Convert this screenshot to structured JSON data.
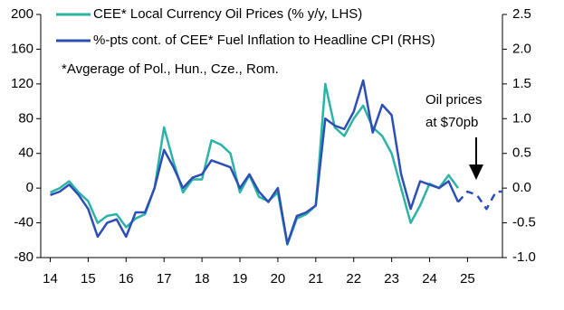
{
  "chart_data": {
    "type": "line",
    "legend": "upper left",
    "xlim": [
      2013.75,
      2025.92
    ],
    "xticks": [
      {
        "value": 2014,
        "label": "14"
      },
      {
        "value": 2015,
        "label": "15"
      },
      {
        "value": 2016,
        "label": "16"
      },
      {
        "value": 2017,
        "label": "17"
      },
      {
        "value": 2018,
        "label": "18"
      },
      {
        "value": 2019,
        "label": "19"
      },
      {
        "value": 2020,
        "label": "20"
      },
      {
        "value": 2021,
        "label": "21"
      },
      {
        "value": 2022,
        "label": "22"
      },
      {
        "value": 2023,
        "label": "23"
      },
      {
        "value": 2024,
        "label": "24"
      },
      {
        "value": 2025,
        "label": "25"
      }
    ],
    "ylim": [
      -80,
      200
    ],
    "yticks": [
      -80,
      -40,
      0,
      40,
      80,
      120,
      160,
      200
    ],
    "y2lim": [
      -1.0,
      2.5
    ],
    "y2ticks": [
      {
        "value": -1,
        "label": "-1.0"
      },
      {
        "value": -0.5,
        "label": "-0.5"
      },
      {
        "value": 0,
        "label": "0.0"
      },
      {
        "value": 0.5,
        "label": "0.5"
      },
      {
        "value": 1,
        "label": "1.0"
      },
      {
        "value": 1.5,
        "label": "1.5"
      },
      {
        "value": 2,
        "label": "2.0"
      },
      {
        "value": 2.5,
        "label": "2.5"
      }
    ],
    "annotations": [
      "*Avgerage of Pol., Hun., Cze., Rom.",
      "Oil prices",
      "at $70pb"
    ],
    "series": [
      {
        "name": "CEE* Local Currency Oil Prices (% y/y, LHS)",
        "color": "#2ab3a6",
        "x": [
          2014.0,
          2014.25,
          2014.5,
          2014.75,
          2015.0,
          2015.25,
          2015.5,
          2015.75,
          2016.0,
          2016.25,
          2016.5,
          2016.75,
          2017.0,
          2017.25,
          2017.5,
          2017.75,
          2018.0,
          2018.25,
          2018.5,
          2018.75,
          2019.0,
          2019.25,
          2019.5,
          2019.75,
          2020.0,
          2020.25,
          2020.5,
          2020.75,
          2021.0,
          2021.25,
          2021.5,
          2021.75,
          2022.0,
          2022.25,
          2022.5,
          2022.75,
          2023.0,
          2023.25,
          2023.5,
          2023.75,
          2024.0,
          2024.25,
          2024.5,
          2024.75
        ],
        "values": [
          -5,
          0,
          8,
          -5,
          -15,
          -40,
          -32,
          -30,
          -45,
          -35,
          -30,
          0,
          70,
          30,
          -5,
          10,
          10,
          55,
          50,
          40,
          -5,
          15,
          -10,
          -15,
          -5,
          -65,
          -35,
          -30,
          -20,
          120,
          70,
          60,
          80,
          95,
          70,
          60,
          40,
          0,
          -40,
          -20,
          5,
          0,
          15,
          0
        ]
      },
      {
        "name": "%-pts cont. of CEE* Fuel Inflation to Headline CPI (RHS)",
        "color": "#2d4fb5",
        "axis": "y2",
        "x": [
          2014.0,
          2014.25,
          2014.5,
          2014.75,
          2015.0,
          2015.25,
          2015.5,
          2015.75,
          2016.0,
          2016.25,
          2016.5,
          2016.75,
          2017.0,
          2017.25,
          2017.5,
          2017.75,
          2018.0,
          2018.25,
          2018.5,
          2018.75,
          2019.0,
          2019.25,
          2019.5,
          2019.75,
          2020.0,
          2020.25,
          2020.5,
          2020.75,
          2021.0,
          2021.25,
          2021.5,
          2021.75,
          2022.0,
          2022.25,
          2022.5,
          2022.75,
          2023.0,
          2023.25,
          2023.5,
          2023.75,
          2024.0,
          2024.25,
          2024.5,
          2024.75
        ],
        "values": [
          -0.1,
          -0.05,
          0.05,
          -0.1,
          -0.3,
          -0.7,
          -0.5,
          -0.45,
          -0.7,
          -0.35,
          -0.35,
          0.0,
          0.55,
          0.3,
          0.0,
          0.15,
          0.2,
          0.4,
          0.35,
          0.3,
          0.0,
          0.2,
          -0.05,
          -0.2,
          0.0,
          -0.8,
          -0.4,
          -0.35,
          -0.25,
          1.0,
          0.9,
          0.85,
          1.1,
          1.55,
          0.8,
          1.2,
          1.05,
          0.2,
          -0.3,
          0.1,
          0.05,
          0.0,
          0.1,
          -0.2
        ]
      },
      {
        "color": "#2d4fb5",
        "axis": "y2",
        "dashed": true,
        "x": [
          2024.75,
          2025.0,
          2025.25,
          2025.5,
          2025.75,
          2025.92
        ],
        "values": [
          -0.2,
          -0.05,
          -0.1,
          -0.3,
          -0.05,
          -0.05
        ]
      }
    ]
  }
}
